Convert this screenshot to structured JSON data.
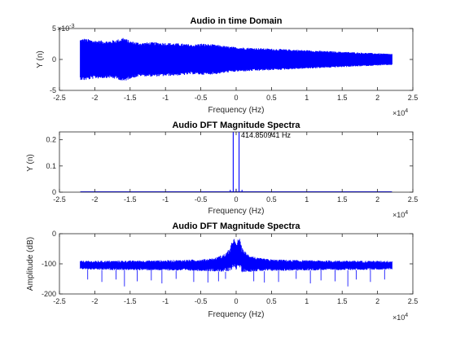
{
  "figure": {
    "background": "#ffffff",
    "axes_color": "#262626",
    "series_color": "#0000ff"
  },
  "chart_data": [
    {
      "type": "area",
      "title": "Audio in time Domain",
      "xlabel": "Frequency (Hz)",
      "ylabel": "Y (n)",
      "xlim": [
        -25000,
        25000
      ],
      "ylim": [
        -0.005,
        0.005
      ],
      "xticks": [
        -25000,
        -20000,
        -15000,
        -10000,
        -5000,
        0,
        5000,
        10000,
        15000,
        20000,
        25000
      ],
      "xtick_labels": [
        "-2.5",
        "-2",
        "-1.5",
        "-1",
        "-0.5",
        "0",
        "0.5",
        "1",
        "1.5",
        "2",
        "2.5"
      ],
      "yticks": [
        -0.005,
        0,
        0.005
      ],
      "ytick_labels": [
        "-5",
        "0",
        "5"
      ],
      "x_exponent": "×10",
      "x_exponent_power": "4",
      "y_exponent": "×10",
      "y_exponent_power": "-3",
      "envelope": {
        "x": [
          -22050,
          -21500,
          -20000,
          -18000,
          -16500,
          -16000,
          -15000,
          -13500,
          -12000,
          -10000,
          -8000,
          -6000,
          -5000,
          -3000,
          -1000,
          0,
          2000,
          4000,
          6000,
          8000,
          10000,
          12000,
          14000,
          16000,
          18000,
          20000,
          22050
        ],
        "upper": [
          0.0033,
          0.0034,
          0.0031,
          0.003,
          0.0033,
          0.0036,
          0.003,
          0.0027,
          0.0028,
          0.0027,
          0.0026,
          0.0024,
          0.0026,
          0.0024,
          0.0021,
          0.002,
          0.0019,
          0.0018,
          0.0017,
          0.0016,
          0.0015,
          0.0014,
          0.0013,
          0.0012,
          0.0011,
          0.001,
          0.0009
        ],
        "lower": [
          -0.0033,
          -0.0034,
          -0.0031,
          -0.003,
          -0.0033,
          -0.0037,
          -0.0031,
          -0.0027,
          -0.0028,
          -0.0027,
          -0.0026,
          -0.0024,
          -0.0025,
          -0.0024,
          -0.0021,
          -0.002,
          -0.0019,
          -0.0018,
          -0.0017,
          -0.0016,
          -0.0015,
          -0.0014,
          -0.0013,
          -0.0012,
          -0.0011,
          -0.001,
          -0.0009
        ]
      }
    },
    {
      "type": "line",
      "title": "Audio DFT Magnitude Spectra",
      "xlabel": "Frequency (Hz)",
      "ylabel": "Y (n)",
      "xlim": [
        -25000,
        25000
      ],
      "ylim": [
        0,
        0.23
      ],
      "xticks": [
        -25000,
        -20000,
        -15000,
        -10000,
        -5000,
        0,
        5000,
        10000,
        15000,
        20000,
        25000
      ],
      "xtick_labels": [
        "-2.5",
        "-2",
        "-1.5",
        "-1",
        "-0.5",
        "0",
        "0.5",
        "1",
        "1.5",
        "2",
        "2.5"
      ],
      "yticks": [
        0,
        0.1,
        0.2
      ],
      "ytick_labels": [
        "0",
        "0.1",
        "0.2"
      ],
      "x_exponent": "×10",
      "x_exponent_power": "4",
      "peaks": [
        {
          "x": -414.85,
          "y": 0.23
        },
        {
          "x": 414.85,
          "y": 0.23
        },
        {
          "x": 0,
          "y": 0.013
        },
        {
          "x": -829.7,
          "y": 0.009
        },
        {
          "x": 829.7,
          "y": 0.009
        }
      ],
      "annotation": {
        "x": 414.85,
        "y": 0.23,
        "text": "414.850941 Hz"
      }
    },
    {
      "type": "area",
      "title": "Audio DFT Magnitude Spectra",
      "xlabel": "Frequency (Hz)",
      "ylabel": "Amplitude (dB)",
      "xlim": [
        -25000,
        25000
      ],
      "ylim": [
        -200,
        0
      ],
      "xticks": [
        -25000,
        -20000,
        -15000,
        -10000,
        -5000,
        0,
        5000,
        10000,
        15000,
        20000,
        25000
      ],
      "xtick_labels": [
        "-2.5",
        "-2",
        "-1.5",
        "-1",
        "-0.5",
        "0",
        "0.5",
        "1",
        "1.5",
        "2",
        "2.5"
      ],
      "yticks": [
        -200,
        -100,
        0
      ],
      "ytick_labels": [
        "-200",
        "-100",
        "0"
      ],
      "x_exponent": "×10",
      "x_exponent_power": "4",
      "envelope": {
        "x": [
          -22050,
          -20000,
          -15000,
          -10000,
          -5000,
          -3000,
          -1500,
          -800,
          -400,
          0,
          400,
          800,
          1500,
          3000,
          5000,
          10000,
          15000,
          20000,
          22050
        ],
        "upper": [
          -90,
          -90,
          -89,
          -88,
          -85,
          -80,
          -65,
          -45,
          -8,
          -35,
          -8,
          -45,
          -65,
          -80,
          -85,
          -88,
          -89,
          -90,
          -90
        ],
        "lower": [
          -118,
          -120,
          -121,
          -122,
          -124,
          -125,
          -127,
          -128,
          -110,
          -120,
          -110,
          -128,
          -127,
          -125,
          -124,
          -122,
          -121,
          -120,
          -118
        ]
      },
      "dips": [
        {
          "x": -21000,
          "y": -152
        },
        {
          "x": -19000,
          "y": -160
        },
        {
          "x": -17000,
          "y": -152
        },
        {
          "x": -15800,
          "y": -175
        },
        {
          "x": -14000,
          "y": -158
        },
        {
          "x": -12000,
          "y": -155
        },
        {
          "x": -10500,
          "y": -165
        },
        {
          "x": -8500,
          "y": -150
        },
        {
          "x": -6000,
          "y": -160
        },
        {
          "x": -4000,
          "y": -162
        },
        {
          "x": -2500,
          "y": -158
        },
        {
          "x": -1500,
          "y": -150
        },
        {
          "x": 2500,
          "y": -158
        },
        {
          "x": 4000,
          "y": -162
        },
        {
          "x": 6000,
          "y": -160
        },
        {
          "x": 8500,
          "y": -150
        },
        {
          "x": 10500,
          "y": -165
        },
        {
          "x": 12000,
          "y": -155
        },
        {
          "x": 14000,
          "y": -158
        },
        {
          "x": 15800,
          "y": -175
        },
        {
          "x": 17000,
          "y": -152
        },
        {
          "x": 19000,
          "y": -160
        },
        {
          "x": 21000,
          "y": -152
        }
      ]
    }
  ]
}
